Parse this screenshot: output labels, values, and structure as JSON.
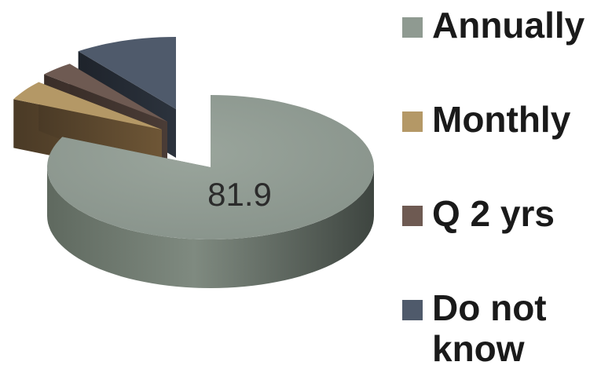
{
  "chart_data": {
    "type": "pie",
    "style": "3d-exploded",
    "series": [
      {
        "categories": [
          "Annually",
          "Monthly",
          "Q 2 yrs",
          "Do not know"
        ],
        "values": [
          81.9,
          4.5,
          3.4,
          10.2
        ],
        "colors": [
          "#8f9a91",
          "#b49866",
          "#6e5a52",
          "#4f5a6b"
        ]
      }
    ],
    "data_labels": [
      "81.9",
      "",
      "",
      ""
    ],
    "legend": {
      "position": "right",
      "entries": [
        "Annually",
        "Monthly",
        "Q 2 yrs",
        "Do not know"
      ]
    }
  }
}
